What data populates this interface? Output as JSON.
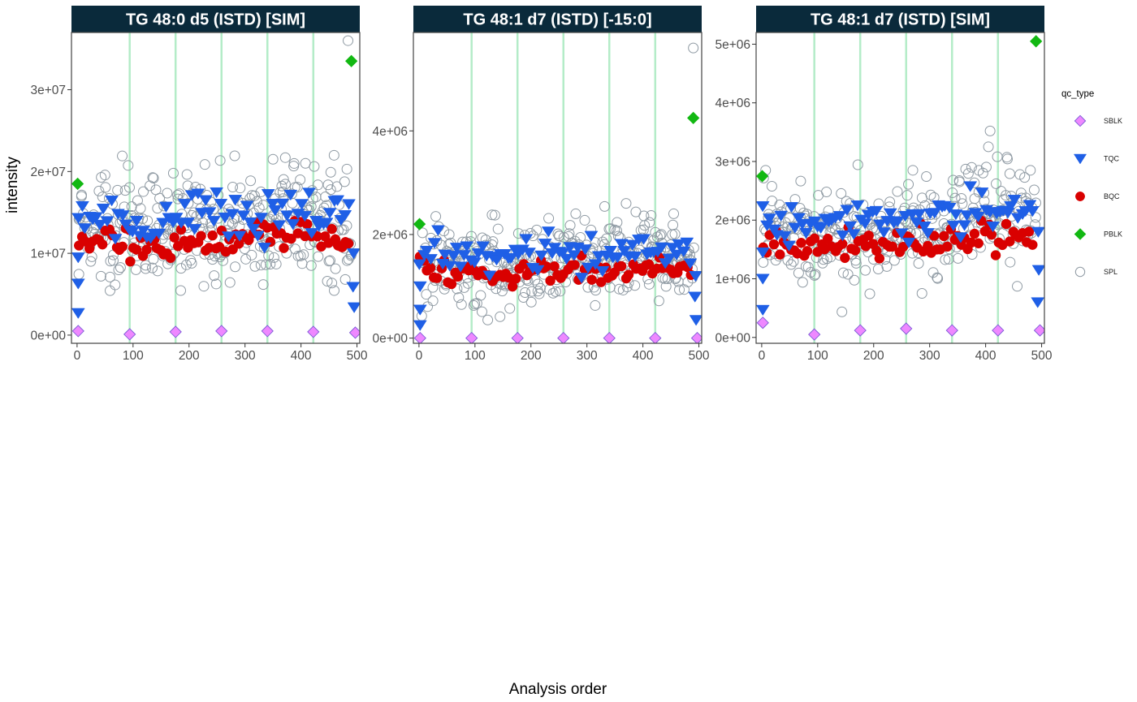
{
  "figure": {
    "xlabel": "Analysis order",
    "ylabel": "intensity",
    "legend": {
      "title": "qc_type",
      "position": "right",
      "items": [
        {
          "label": "SBLK",
          "shape": "diamond",
          "fill": "#ee88ff",
          "stroke": "#7a5ad6"
        },
        {
          "label": "TQC",
          "shape": "triangle-down",
          "fill": "#1f5fe6",
          "stroke": "#1f5fe6"
        },
        {
          "label": "BQC",
          "shape": "circle",
          "fill": "#d90000",
          "stroke": "#d90000"
        },
        {
          "label": "PBLK",
          "shape": "diamond",
          "fill": "#12b812",
          "stroke": "#12b812"
        },
        {
          "label": "SPL",
          "shape": "circle-open",
          "fill": "none",
          "stroke": "#8f9aa3"
        }
      ]
    },
    "colors": {
      "strip_bg": "#0a2a3b",
      "batch_line": "#b4ecc8",
      "panel_border": "#444444"
    }
  },
  "chart_data": [
    {
      "type": "scatter",
      "title": "TG 48:0 d5 (ISTD) [SIM]",
      "xlim": [
        -10,
        505
      ],
      "ylim": [
        -1000000,
        37000000
      ],
      "xticks": [
        0,
        100,
        200,
        300,
        400,
        500
      ],
      "xtick_labels": [
        "0",
        "100",
        "200",
        "300",
        "400",
        "500"
      ],
      "yticks": [
        0,
        10000000,
        20000000,
        30000000
      ],
      "ytick_labels": [
        "0e+00",
        "1e+07",
        "2e+07",
        "3e+07"
      ],
      "batch_lines_x": [
        94,
        176,
        258,
        340,
        422
      ],
      "series": [
        {
          "name": "SBLK",
          "points": [
            [
              2,
              500000
            ],
            [
              94,
              100000
            ],
            [
              176,
              400000
            ],
            [
              258,
              500000
            ],
            [
              340,
              500000
            ],
            [
              422,
              400000
            ],
            [
              497,
              300000
            ]
          ]
        },
        {
          "name": "PBLK",
          "points": [
            [
              1,
              18500000
            ],
            [
              490,
              33500000
            ]
          ]
        },
        {
          "name": "TQC",
          "trend": [
            [
              2,
              14500000
            ],
            [
              100,
              13500000
            ],
            [
              250,
              14500000
            ],
            [
              400,
              14000000
            ],
            [
              485,
              15000000
            ]
          ],
          "scatter": 1500000,
          "n": 75,
          "extra": [
            [
              2,
              6300000
            ],
            [
              2,
              2700000
            ],
            [
              2,
              9500000
            ],
            [
              493,
              5900000
            ],
            [
              495,
              3400000
            ],
            [
              494,
              10000000
            ]
          ]
        },
        {
          "name": "BQC",
          "trend": [
            [
              3,
              12000000
            ],
            [
              100,
              11000000
            ],
            [
              250,
              10500000
            ],
            [
              400,
              13000000
            ],
            [
              485,
              10500000
            ]
          ],
          "scatter": 900000,
          "n": 80,
          "extra": [
            [
              95,
              9000000
            ]
          ]
        },
        {
          "name": "SPL",
          "trend": [
            [
              3,
              13500000
            ],
            [
              100,
              12500000
            ],
            [
              250,
              13000000
            ],
            [
              400,
              14000000
            ],
            [
              490,
              13500000
            ]
          ],
          "scatter": 3500000,
          "n": 330,
          "extra": [
            [
              484,
              36000000
            ],
            [
              172,
              19800000
            ],
            [
              372,
              21700000
            ],
            [
              350,
              21500000
            ],
            [
              408,
              21000000
            ],
            [
              482,
              20300000
            ]
          ]
        }
      ]
    },
    {
      "type": "scatter",
      "title": "TG 48:1 d7 (ISTD) [-15:0]",
      "xlim": [
        -10,
        505
      ],
      "ylim": [
        -100000,
        5900000
      ],
      "xticks": [
        0,
        100,
        200,
        300,
        400,
        500
      ],
      "xtick_labels": [
        "0",
        "100",
        "200",
        "300",
        "400",
        "500"
      ],
      "yticks": [
        0,
        2000000,
        4000000
      ],
      "ytick_labels": [
        "0e+00",
        "2e+06",
        "4e+06"
      ],
      "batch_lines_x": [
        94,
        176,
        258,
        340,
        422
      ],
      "series": [
        {
          "name": "SBLK",
          "points": [
            [
              2,
              0
            ],
            [
              94,
              0
            ],
            [
              176,
              0
            ],
            [
              258,
              0
            ],
            [
              340,
              0
            ],
            [
              422,
              0
            ],
            [
              497,
              0
            ]
          ]
        },
        {
          "name": "PBLK",
          "points": [
            [
              1,
              2200000
            ],
            [
              490,
              4250000
            ]
          ]
        },
        {
          "name": "TQC",
          "trend": [
            [
              2,
              1650000
            ],
            [
              100,
              1550000
            ],
            [
              250,
              1600000
            ],
            [
              400,
              1650000
            ],
            [
              485,
              1600000
            ]
          ],
          "scatter": 180000,
          "n": 75,
          "extra": [
            [
              2,
              550000
            ],
            [
              2,
              250000
            ],
            [
              2,
              1000000
            ],
            [
              493,
              800000
            ],
            [
              495,
              350000
            ],
            [
              494,
              1200000
            ]
          ]
        },
        {
          "name": "BQC",
          "trend": [
            [
              3,
              1350000
            ],
            [
              100,
              1200000
            ],
            [
              250,
              1300000
            ],
            [
              400,
              1400000
            ],
            [
              485,
              1300000
            ]
          ],
          "scatter": 110000,
          "n": 80,
          "extra": []
        },
        {
          "name": "SPL",
          "trend": [
            [
              3,
              1500000
            ],
            [
              100,
              1450000
            ],
            [
              250,
              1500000
            ],
            [
              400,
              1650000
            ],
            [
              490,
              1550000
            ]
          ],
          "scatter": 400000,
          "n": 330,
          "extra": [
            [
              490,
              5600000
            ],
            [
              280,
              2400000
            ],
            [
              370,
              2600000
            ],
            [
              30,
              2350000
            ],
            [
              455,
              2400000
            ]
          ]
        }
      ]
    },
    {
      "type": "scatter",
      "title": "TG 48:1 d7 (ISTD) [SIM]",
      "xlim": [
        -10,
        505
      ],
      "ylim": [
        -100000,
        5200000
      ],
      "xticks": [
        0,
        100,
        200,
        300,
        400,
        500
      ],
      "xtick_labels": [
        "0",
        "100",
        "200",
        "300",
        "400",
        "500"
      ],
      "yticks": [
        0,
        1000000,
        2000000,
        3000000,
        4000000,
        5000000
      ],
      "ytick_labels": [
        "0e+00",
        "1e+06",
        "2e+06",
        "3e+06",
        "4e+06",
        "5e+06"
      ],
      "batch_lines_x": [
        94,
        176,
        258,
        340,
        422
      ],
      "series": [
        {
          "name": "SBLK",
          "points": [
            [
              2,
              250000
            ],
            [
              94,
              50000
            ],
            [
              176,
              120000
            ],
            [
              258,
              150000
            ],
            [
              340,
              120000
            ],
            [
              422,
              120000
            ],
            [
              497,
              120000
            ]
          ]
        },
        {
          "name": "PBLK",
          "points": [
            [
              1,
              2750000
            ],
            [
              490,
              5050000
            ]
          ]
        },
        {
          "name": "TQC",
          "trend": [
            [
              2,
              2000000
            ],
            [
              100,
              1950000
            ],
            [
              250,
              2050000
            ],
            [
              400,
              2150000
            ],
            [
              485,
              2200000
            ]
          ],
          "scatter": 180000,
          "n": 75,
          "extra": [
            [
              2,
              470000
            ],
            [
              2,
              1000000
            ],
            [
              2,
              1450000
            ],
            [
              493,
              600000
            ],
            [
              495,
              1150000
            ],
            [
              494,
              1800000
            ]
          ]
        },
        {
          "name": "BQC",
          "trend": [
            [
              3,
              1500000
            ],
            [
              100,
              1500000
            ],
            [
              250,
              1600000
            ],
            [
              400,
              1700000
            ],
            [
              485,
              1700000
            ]
          ],
          "scatter": 120000,
          "n": 80,
          "extra": []
        },
        {
          "name": "SPL",
          "trend": [
            [
              3,
              1850000
            ],
            [
              100,
              1700000
            ],
            [
              250,
              1800000
            ],
            [
              400,
              2100000
            ],
            [
              490,
              2100000
            ]
          ],
          "scatter": 420000,
          "n": 330,
          "extra": [
            [
              408,
              3520000
            ],
            [
              405,
              3250000
            ],
            [
              7,
              2850000
            ],
            [
              270,
              2850000
            ],
            [
              480,
              2850000
            ],
            [
              375,
              2900000
            ]
          ]
        }
      ]
    }
  ]
}
